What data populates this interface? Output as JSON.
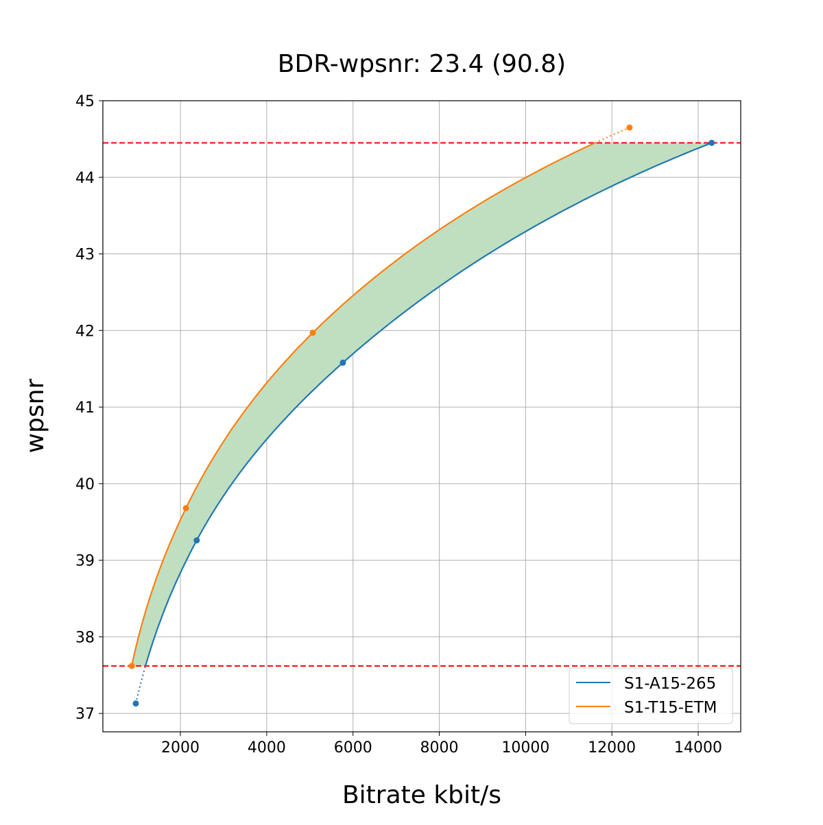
{
  "chart_data": {
    "type": "line",
    "title": "BDR-wpsnr: 23.4 (90.8)",
    "xlabel": "Bitrate kbit/s",
    "ylabel": "wpsnr",
    "xlim": [
      203,
      14985
    ],
    "ylim": [
      36.76,
      45.0
    ],
    "xticks": [
      2000,
      4000,
      6000,
      8000,
      10000,
      12000,
      14000
    ],
    "yticks": [
      37,
      38,
      39,
      40,
      41,
      42,
      43,
      44,
      45
    ],
    "grid": true,
    "legend_position": "lower-right",
    "series": [
      {
        "name": "S1-A15-265",
        "color": "#1f77b4",
        "x": [
          966,
          2378,
          5766,
          14313
        ],
        "y": [
          37.13,
          39.26,
          41.58,
          44.45
        ]
      },
      {
        "name": "S1-T15-ETM",
        "color": "#ff7f0e",
        "x": [
          872,
          2128,
          5067,
          12409
        ],
        "y": [
          37.62,
          39.68,
          41.97,
          44.65
        ]
      }
    ],
    "reference_lines": {
      "y": [
        37.62,
        44.45
      ],
      "color": "#ff0000",
      "style": "dashed"
    },
    "fill_between": {
      "color": "#c0dfc0",
      "y_range": [
        37.62,
        44.45
      ]
    }
  }
}
